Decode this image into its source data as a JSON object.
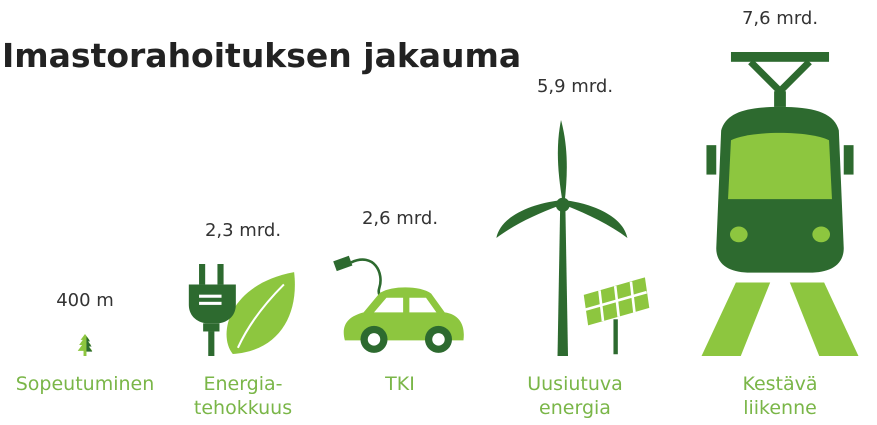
{
  "chart_data": {
    "type": "pictograph",
    "title": "Imastorahoituksen jakauma",
    "categories": [
      "Sopeutuminen",
      "Energia-\ntehokkuus",
      "TKI",
      "Uusiutuva\nenergia",
      "Kestävä\nliikenne"
    ],
    "values": [
      400,
      2300,
      2600,
      5900,
      7600
    ],
    "value_labels": [
      "400 m",
      "2,3 mrd.",
      "2,6 mrd.",
      "5,9 mrd.",
      "7,6 mrd."
    ],
    "colors": [
      "#2d6a2f",
      "#8dc63f"
    ]
  }
}
